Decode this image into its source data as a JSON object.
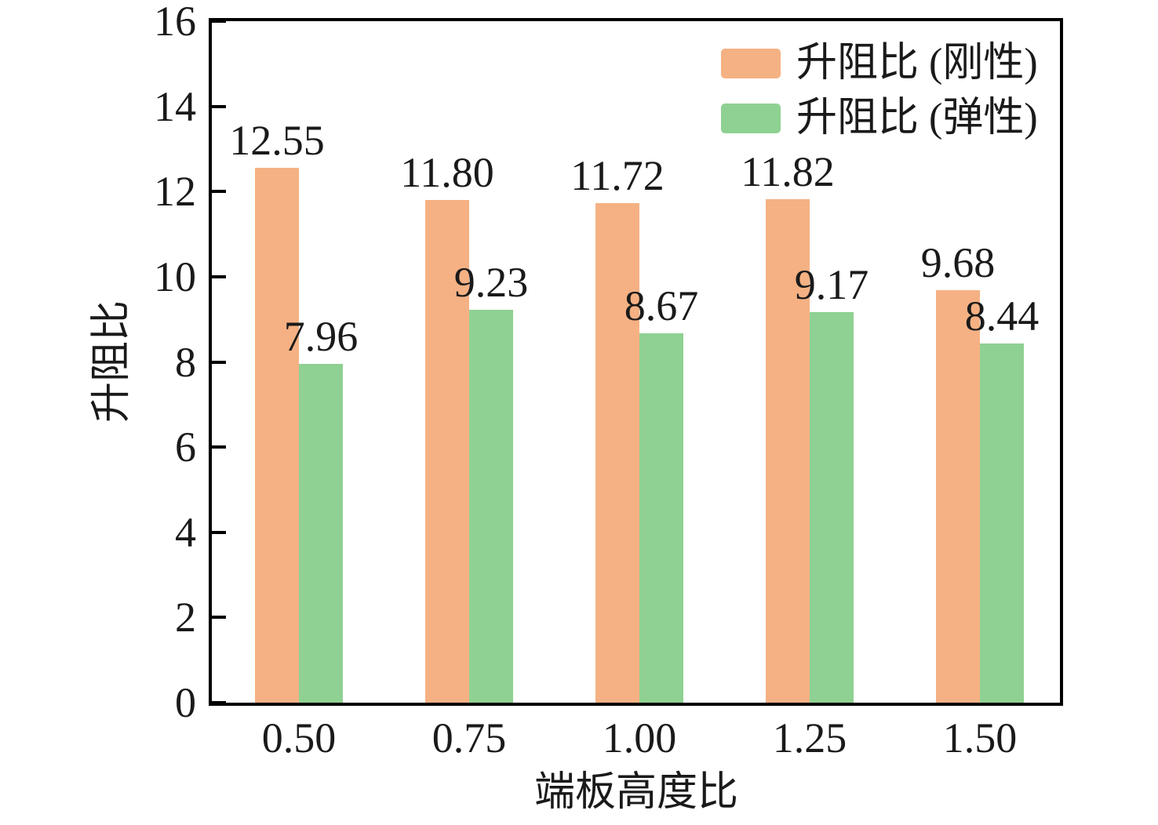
{
  "chart_data": {
    "type": "bar",
    "categories": [
      "0.50",
      "0.75",
      "1.00",
      "1.25",
      "1.50"
    ],
    "series": [
      {
        "name": "升阻比 (刚性)",
        "color": "#F5B183",
        "values": [
          12.55,
          11.8,
          11.72,
          11.82,
          9.68
        ],
        "value_labels": [
          "12.55",
          "11.80",
          "11.72",
          "11.82",
          "9.68"
        ]
      },
      {
        "name": "升阻比 (弹性)",
        "color": "#8FD192",
        "values": [
          7.96,
          9.23,
          8.67,
          9.17,
          8.44
        ],
        "value_labels": [
          "7.96",
          "9.23",
          "8.67",
          "9.17",
          "8.44"
        ]
      }
    ],
    "title": "",
    "xlabel": "端板高度比",
    "ylabel": "升阻比",
    "ylim": [
      0,
      16
    ],
    "yticks": [
      0,
      2,
      4,
      6,
      8,
      10,
      12,
      14,
      16
    ],
    "ytick_labels": [
      "0",
      "2",
      "4",
      "6",
      "8",
      "10",
      "12",
      "14",
      "16"
    ],
    "grid": false,
    "legend_position": "top-right-inside",
    "axis_color": "#000000",
    "text_color": "#1a1a1a"
  }
}
